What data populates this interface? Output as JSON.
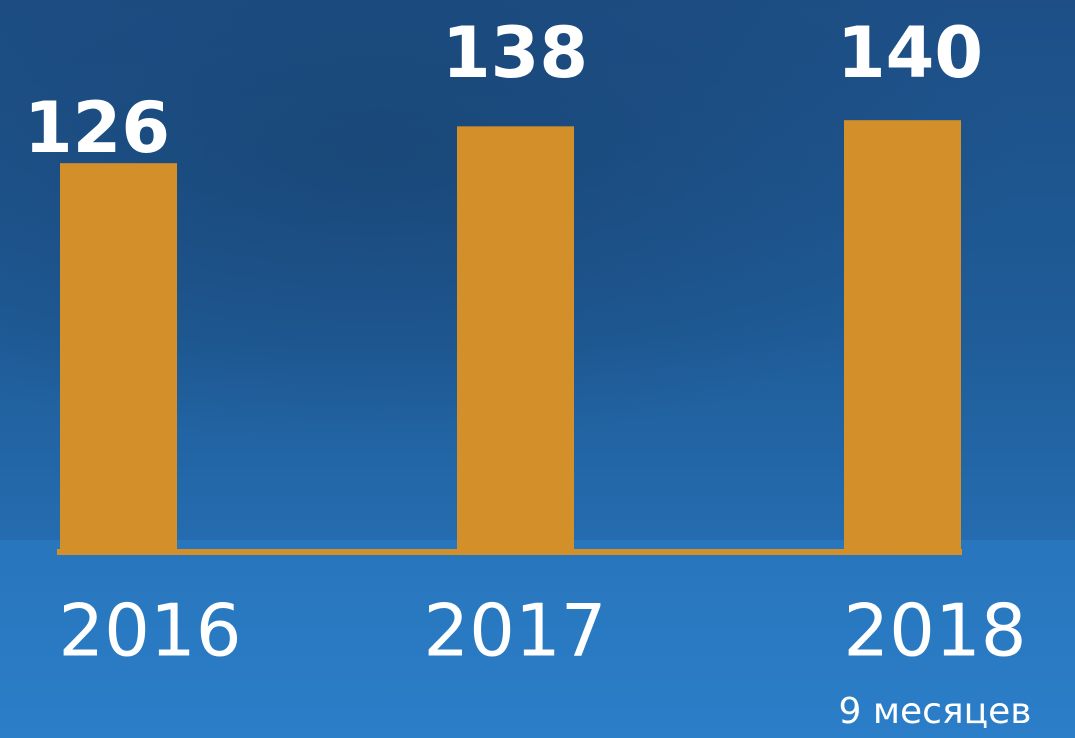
{
  "chart_data": {
    "type": "bar",
    "categories": [
      "2016",
      "2017",
      "2018"
    ],
    "values": [
      126,
      138,
      140
    ],
    "color": "#d38f2a",
    "annotation": "9 месяцев"
  }
}
